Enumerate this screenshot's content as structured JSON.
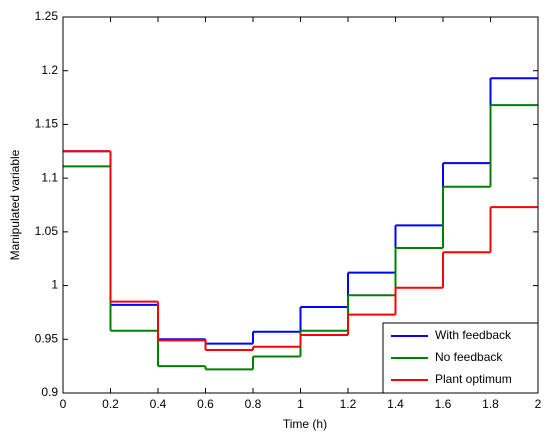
{
  "chart_data": {
    "type": "step",
    "xlabel": "Time (h)",
    "ylabel": "Manipulated variable",
    "x": [
      0,
      0.2,
      0.4,
      0.6,
      0.8,
      1.0,
      1.2,
      1.4,
      1.6,
      1.8
    ],
    "series": [
      {
        "name": "With feedback",
        "color": "#0000ff",
        "values": [
          1.125,
          0.982,
          0.95,
          0.946,
          0.957,
          0.98,
          1.012,
          1.056,
          1.114,
          1.193
        ]
      },
      {
        "name": "No feedback",
        "color": "#008000",
        "values": [
          1.111,
          0.958,
          0.925,
          0.922,
          0.934,
          0.958,
          0.991,
          1.035,
          1.092,
          1.168
        ]
      },
      {
        "name": "Plant optimum",
        "color": "#ff0000",
        "values": [
          1.125,
          0.985,
          0.949,
          0.94,
          0.943,
          0.954,
          0.973,
          0.998,
          1.031,
          1.073
        ]
      }
    ],
    "xlim": [
      0,
      2
    ],
    "xticks": [
      0,
      0.2,
      0.4,
      0.6,
      0.8,
      1,
      1.2,
      1.4,
      1.6,
      1.8,
      2
    ],
    "ylim": [
      0.9,
      1.25
    ],
    "yticks": [
      0.9,
      0.95,
      1,
      1.05,
      1.1,
      1.15,
      1.2,
      1.25
    ],
    "legend": "lower right",
    "grid": false
  }
}
